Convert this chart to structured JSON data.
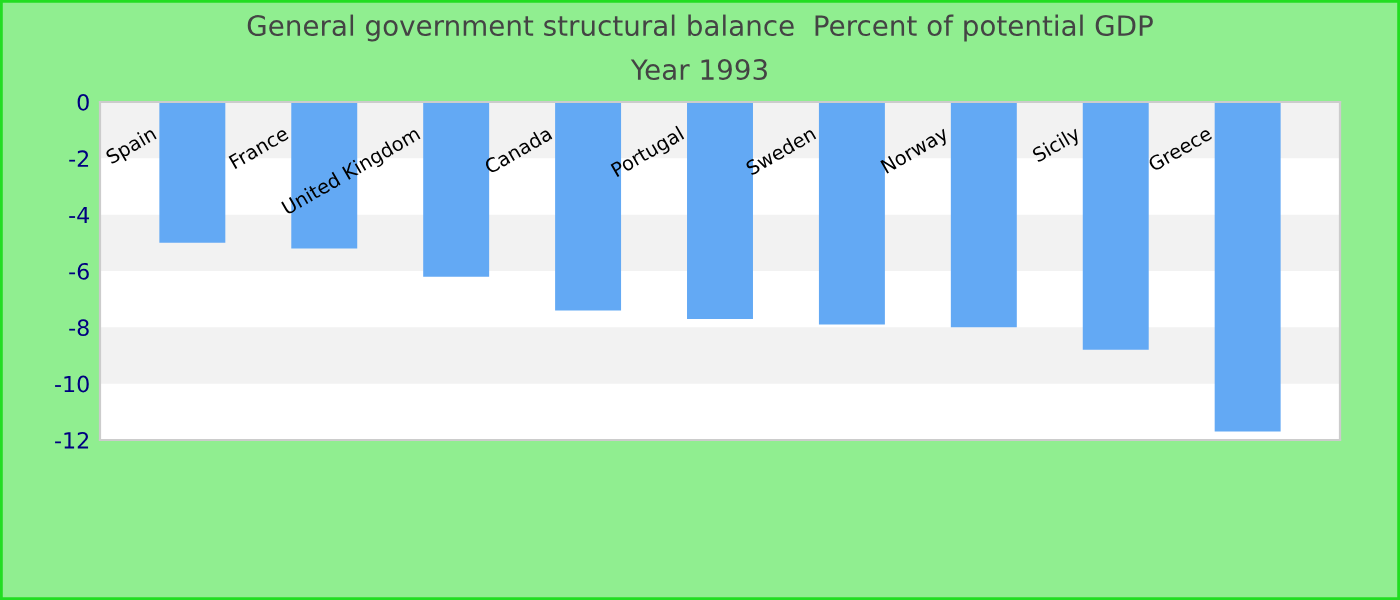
{
  "chart_data": {
    "type": "bar",
    "title": "General government structural balance  Percent of potential GDP",
    "subtitle": "Year 1993",
    "categories": [
      "Spain",
      "France",
      "United Kingdom",
      "Canada",
      "Portugal",
      "Sweden",
      "Norway",
      "Sicily",
      "Greece"
    ],
    "values": [
      -5.0,
      -5.2,
      -6.2,
      -7.4,
      -7.7,
      -7.9,
      -8.0,
      -8.8,
      -11.7
    ],
    "color": "#63a9f4",
    "ylim": [
      -12,
      0
    ],
    "yticks": [
      0,
      -2,
      -4,
      -6,
      -8,
      -10,
      -12
    ],
    "bands": [
      {
        "axis": "y",
        "from": -2,
        "to": 0,
        "color": "#f2f2f2"
      },
      {
        "axis": "y",
        "from": -6,
        "to": -4,
        "color": "#f2f2f2"
      },
      {
        "axis": "y",
        "from": -10,
        "to": -8,
        "color": "#f2f2f2"
      }
    ]
  }
}
